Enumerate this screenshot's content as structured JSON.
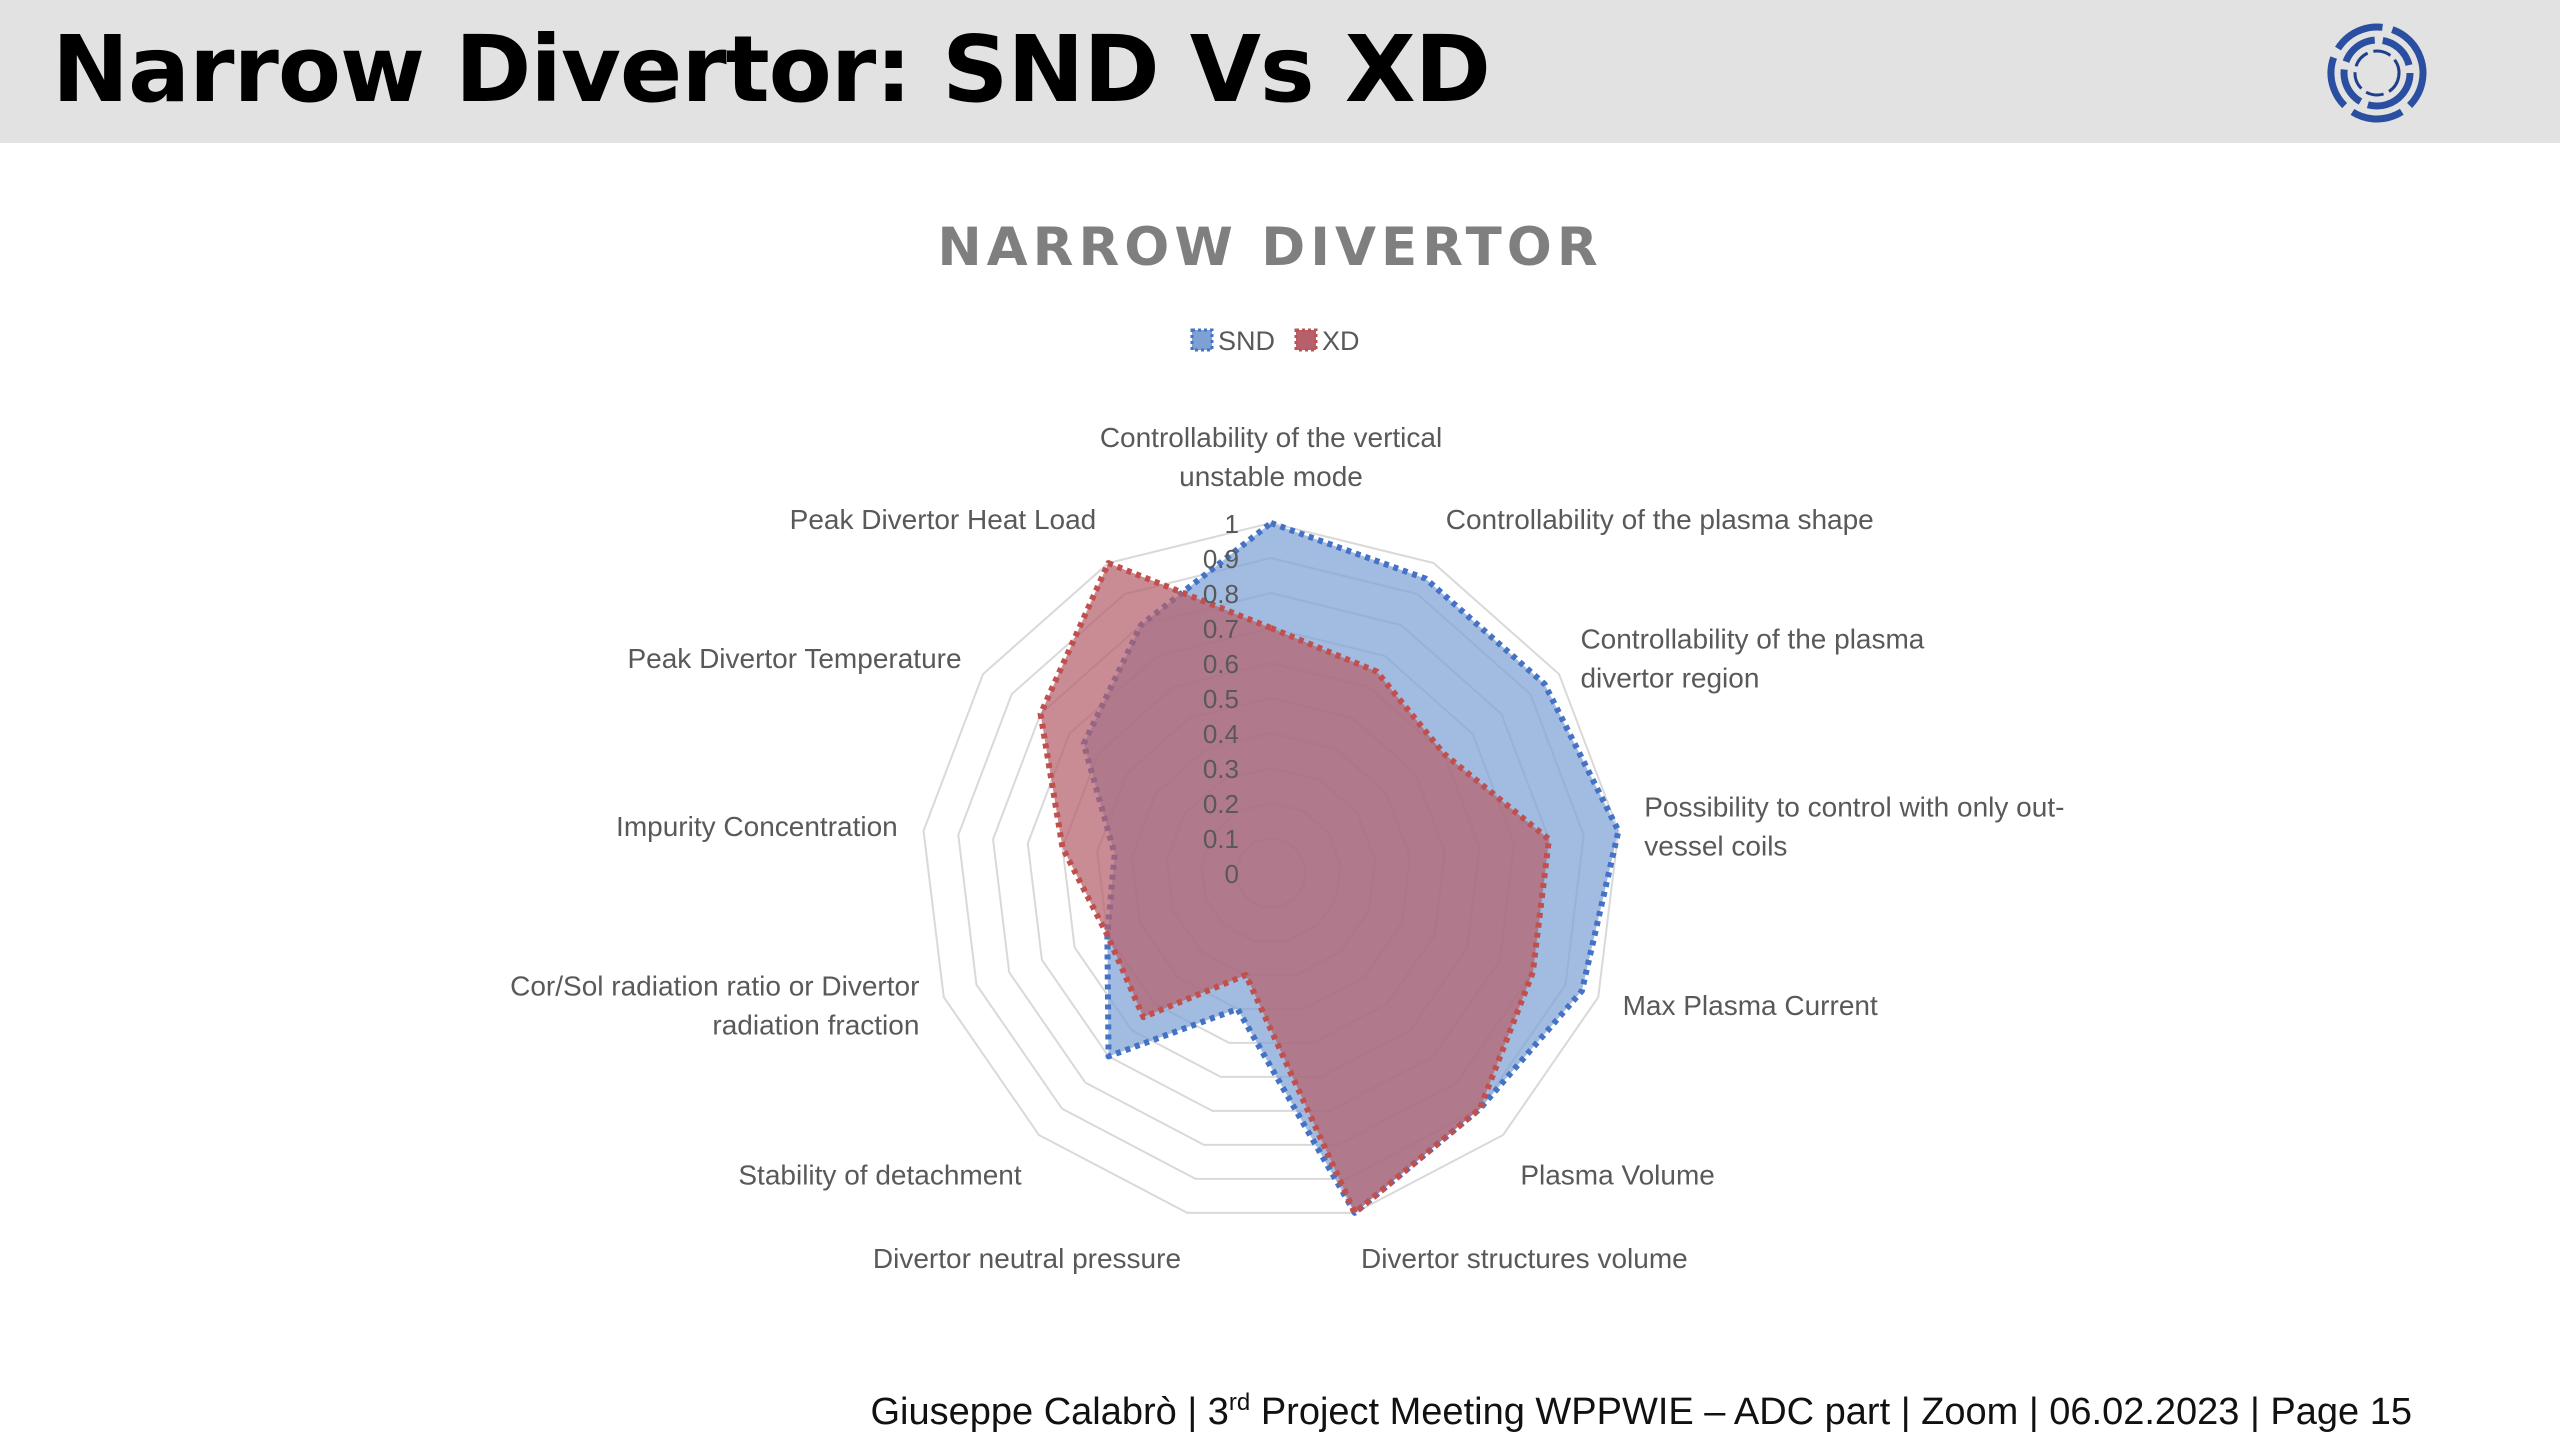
{
  "slide": {
    "title": "Narrow Divertor: SND Vs XD",
    "footer": {
      "pre": "Giuseppe Calabrò | 3",
      "sup": "rd",
      "post": " Project Meeting WPPWIE – ADC part | Zoom | 06.02.2023 | Page 15"
    }
  },
  "logo_icon": "ring-logo-icon",
  "colors": {
    "header_bg": "#e2e2e2",
    "snd_fill": "#7ea1d4",
    "snd_line": "#4472c4",
    "xd_fill": "#b5606b",
    "xd_line": "#c0504d",
    "grid": "#d9d9d9",
    "label": "#595959"
  },
  "chart_data": {
    "type": "radar",
    "title": "NARROW DIVERTOR",
    "legend_position": "top",
    "rlim": [
      0,
      1
    ],
    "ticks": [
      "0",
      "0.1",
      "0.2",
      "0.3",
      "0.4",
      "0.5",
      "0.6",
      "0.7",
      "0.8",
      "0.9",
      "1"
    ],
    "categories": [
      [
        "Controllability of the vertical",
        "unstable mode"
      ],
      [
        "Controllability of the plasma shape"
      ],
      [
        "Controllability of the plasma",
        "divertor region"
      ],
      [
        "Possibility to control with only out-",
        "vessel coils"
      ],
      [
        "Max Plasma Current"
      ],
      [
        "Plasma Volume"
      ],
      [
        "Divertor structures volume"
      ],
      [
        "Divertor neutral pressure"
      ],
      [
        "Stability of detachment"
      ],
      [
        "Cor/Sol radiation ratio or Divertor",
        "radiation fraction"
      ],
      [
        "Impurity Concentration"
      ],
      [
        "Peak Divertor Temperature"
      ],
      [
        "Peak Divertor Heat Load"
      ]
    ],
    "series": [
      {
        "name": "SND",
        "values": [
          1.0,
          0.95,
          0.95,
          1.0,
          0.95,
          0.9,
          1.0,
          0.4,
          0.7,
          0.5,
          0.45,
          0.65,
          0.8
        ]
      },
      {
        "name": "XD",
        "values": [
          0.7,
          0.65,
          0.6,
          0.8,
          0.8,
          0.9,
          1.0,
          0.3,
          0.55,
          0.5,
          0.6,
          0.8,
          1.0
        ]
      }
    ]
  }
}
